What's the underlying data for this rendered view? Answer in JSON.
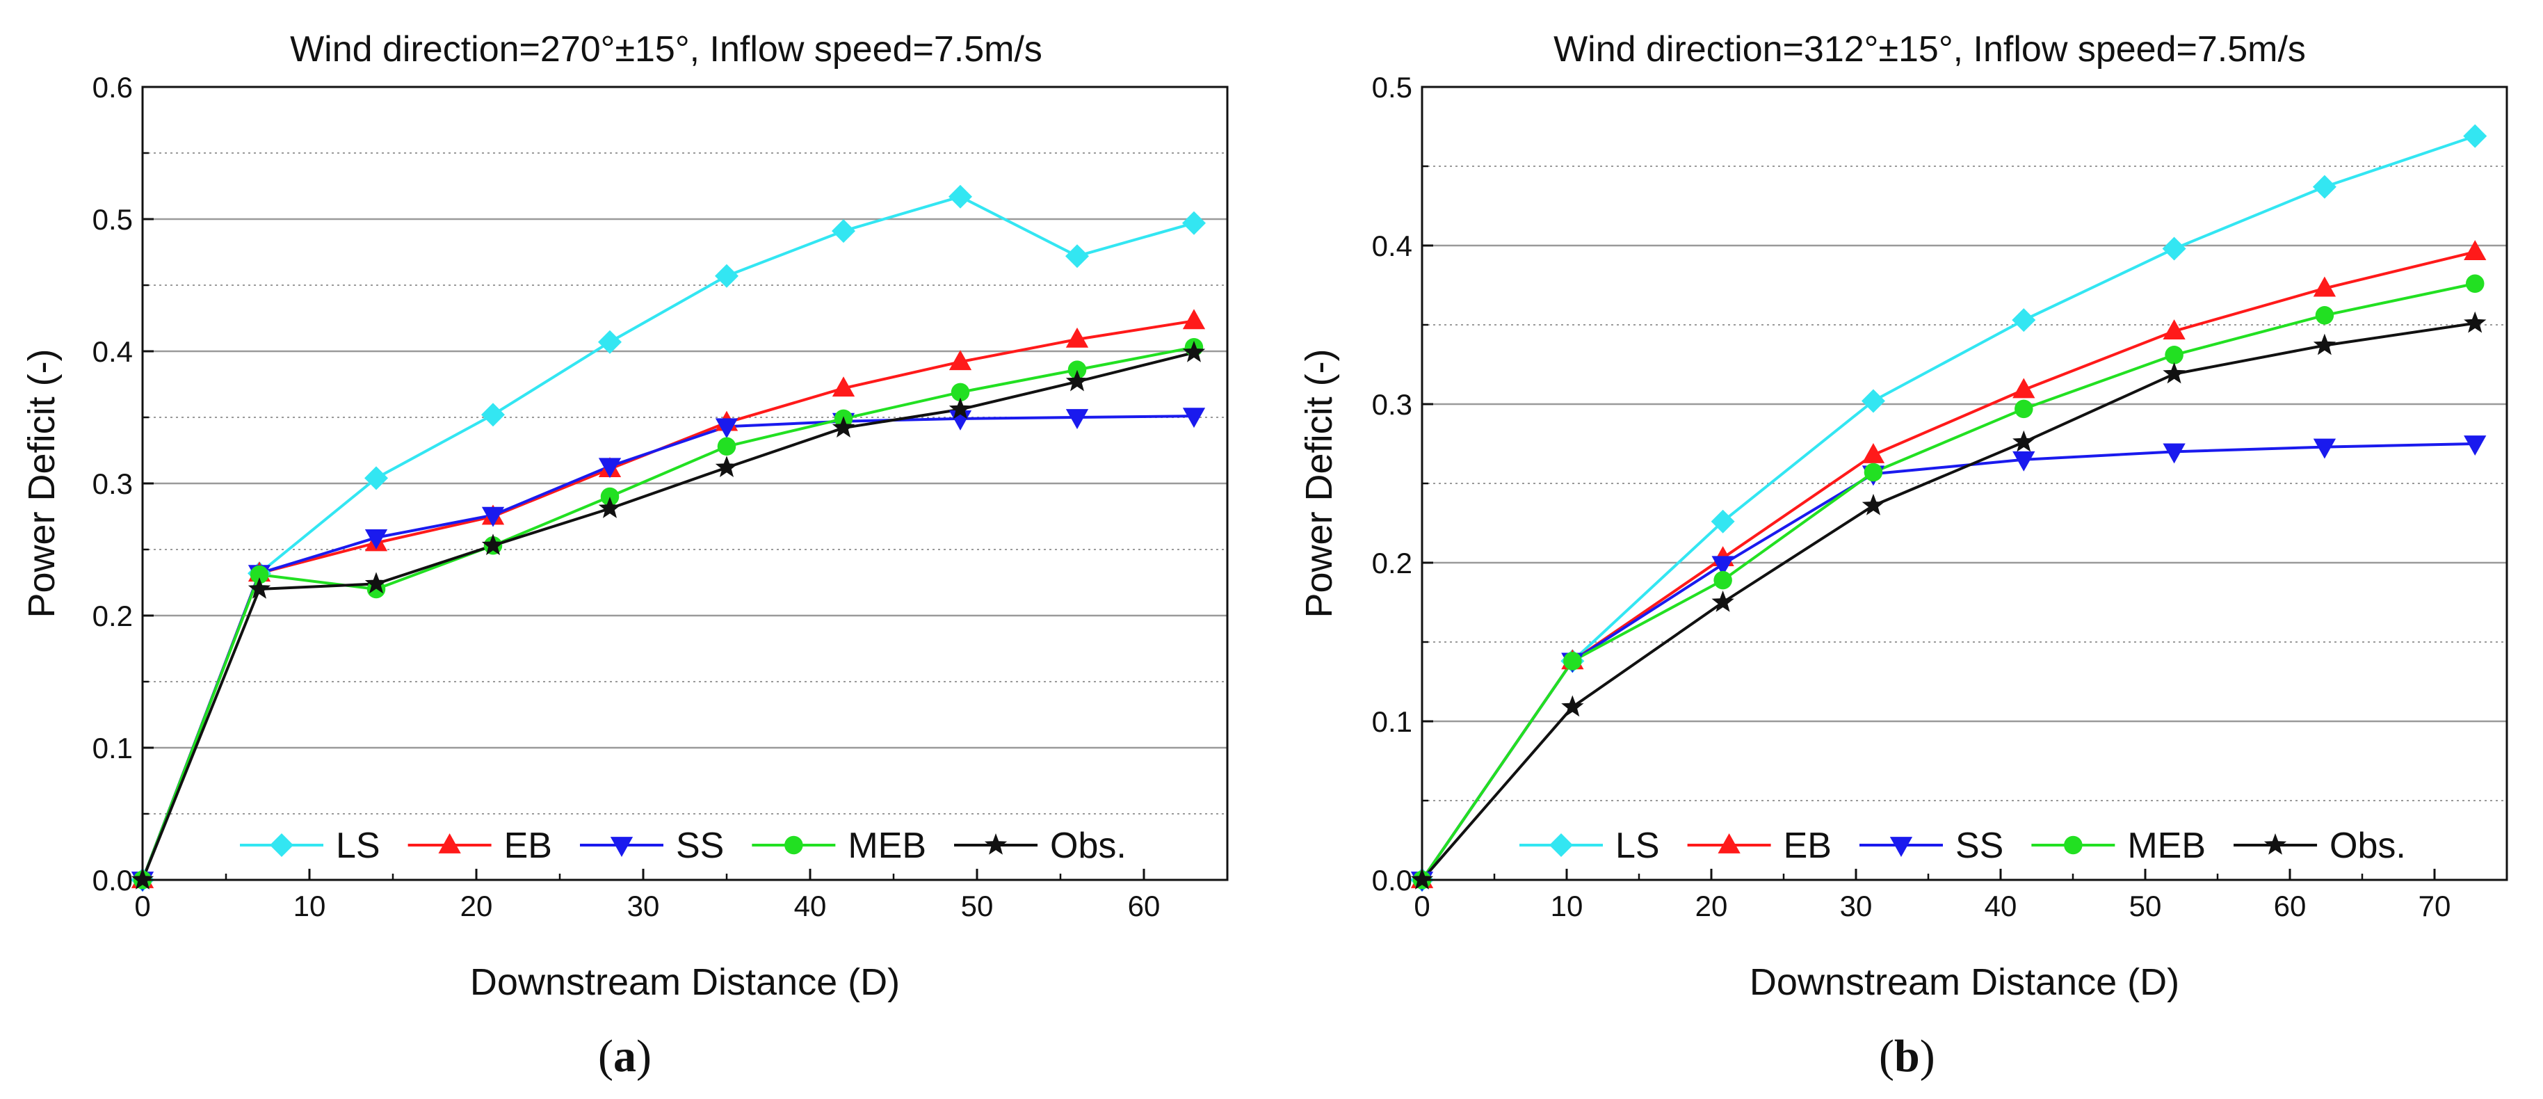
{
  "series_styles": [
    {
      "name": "LS",
      "color": "#33e6f2",
      "marker": "diamond"
    },
    {
      "name": "EB",
      "color": "#ff1a1a",
      "marker": "triangle-up"
    },
    {
      "name": "SS",
      "color": "#1a1aee",
      "marker": "triangle-down"
    },
    {
      "name": "MEB",
      "color": "#22e022",
      "marker": "circle"
    },
    {
      "name": "Obs.",
      "color": "#111111",
      "marker": "star"
    }
  ],
  "chart_data": [
    {
      "type": "line",
      "panel": {
        "open": "(",
        "letter": "a",
        "close": ")"
      },
      "title": "Wind direction=270°±15°, Inflow speed=7.5m/s",
      "xlabel": "Downstream Distance (D)",
      "ylabel": "Power Deficit (-)",
      "xlim": [
        0,
        65
      ],
      "ylim": [
        0,
        0.6
      ],
      "xticks": [
        0,
        10,
        20,
        30,
        40,
        50,
        60
      ],
      "xtick_labels": [
        "0",
        "10",
        "20",
        "30",
        "40",
        "50",
        "60"
      ],
      "yticks": [
        0,
        0.1,
        0.2,
        0.3,
        0.4,
        0.5,
        0.6
      ],
      "ytick_labels": [
        "0.0",
        "0.1",
        "0.2",
        "0.3",
        "0.4",
        "0.5",
        "0.6"
      ],
      "minor_grid": [
        0.05,
        0.15,
        0.25,
        0.35,
        0.45,
        0.55
      ],
      "grid": "horizontal",
      "legend_position": "bottom",
      "x": [
        0,
        7,
        14,
        21,
        28,
        35,
        42,
        49,
        56,
        63
      ],
      "series": [
        {
          "name": "LS",
          "values": [
            0,
            0.232,
            0.304,
            0.352,
            0.407,
            0.457,
            0.491,
            0.517,
            0.472,
            0.497
          ]
        },
        {
          "name": "EB",
          "values": [
            0,
            0.232,
            0.255,
            0.275,
            0.311,
            0.346,
            0.372,
            0.392,
            0.409,
            0.423
          ]
        },
        {
          "name": "SS",
          "values": [
            0,
            0.232,
            0.259,
            0.276,
            0.313,
            0.343,
            0.347,
            0.349,
            0.35,
            0.351
          ]
        },
        {
          "name": "MEB",
          "values": [
            0,
            0.231,
            0.22,
            0.253,
            0.29,
            0.328,
            0.349,
            0.369,
            0.386,
            0.403
          ]
        },
        {
          "name": "Obs.",
          "values": [
            0,
            0.22,
            0.224,
            0.253,
            0.281,
            0.312,
            0.342,
            0.356,
            0.377,
            0.399
          ]
        }
      ]
    },
    {
      "type": "line",
      "panel": {
        "open": "(",
        "letter": "b",
        "close": ")"
      },
      "title": "Wind direction=312°±15°, Inflow speed=7.5m/s",
      "xlabel": "Downstream Distance (D)",
      "ylabel": "Power Deficit (-)",
      "xlim": [
        0,
        75
      ],
      "ylim": [
        0,
        0.5
      ],
      "xticks": [
        0,
        10,
        20,
        30,
        40,
        50,
        60,
        70
      ],
      "xtick_labels": [
        "0",
        "10",
        "20",
        "30",
        "40",
        "50",
        "60",
        "70"
      ],
      "yticks": [
        0,
        0.1,
        0.2,
        0.3,
        0.4,
        0.5
      ],
      "ytick_labels": [
        "0.0",
        "0.1",
        "0.2",
        "0.3",
        "0.4",
        "0.5"
      ],
      "minor_grid": [
        0.05,
        0.15,
        0.25,
        0.35,
        0.45
      ],
      "grid": "horizontal",
      "legend_position": "bottom",
      "x": [
        0,
        10.4,
        20.8,
        31.2,
        41.6,
        52,
        62.4,
        72.8
      ],
      "series": [
        {
          "name": "LS",
          "values": [
            0,
            0.138,
            0.226,
            0.302,
            0.353,
            0.398,
            0.437,
            0.469
          ]
        },
        {
          "name": "EB",
          "values": [
            0,
            0.138,
            0.203,
            0.268,
            0.309,
            0.346,
            0.373,
            0.396
          ]
        },
        {
          "name": "SS",
          "values": [
            0,
            0.138,
            0.199,
            0.256,
            0.265,
            0.27,
            0.273,
            0.275
          ]
        },
        {
          "name": "MEB",
          "values": [
            0,
            0.138,
            0.189,
            0.257,
            0.297,
            0.331,
            0.356,
            0.376
          ]
        },
        {
          "name": "Obs.",
          "values": [
            0,
            0.109,
            0.175,
            0.236,
            0.276,
            0.319,
            0.337,
            0.351
          ]
        }
      ]
    }
  ]
}
